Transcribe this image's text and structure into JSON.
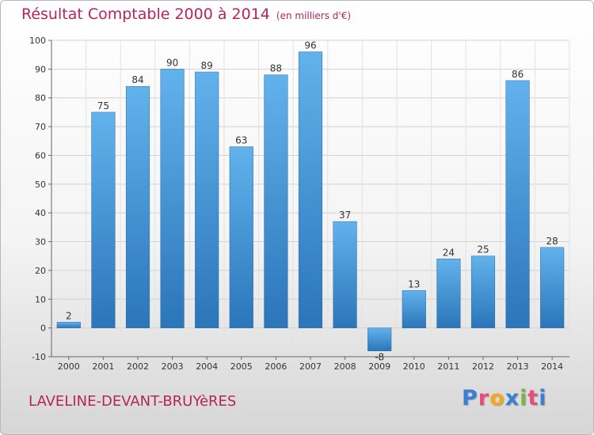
{
  "header": {
    "title": "Résultat Comptable 2000 à 2014",
    "unit": "(en milliers d'€)"
  },
  "commune": "LAVELINE-DEVANT-BRUYèRES",
  "logo": {
    "letters": [
      "P",
      "r",
      "o",
      "x",
      "i",
      "t",
      "i"
    ],
    "colors": [
      "#3a7fd5",
      "#e84c7e",
      "#f3a81c",
      "#3a7fd5",
      "#7cb342",
      "#e84c7e",
      "#3a7fd5"
    ]
  },
  "colors": {
    "bar_top": "#62b2ec",
    "bar_bottom": "#2b75b9",
    "title": "#b5245c"
  },
  "chart_data": {
    "type": "bar",
    "categories": [
      "2000",
      "2001",
      "2002",
      "2003",
      "2004",
      "2005",
      "2006",
      "2007",
      "2008",
      "2009",
      "2010",
      "2011",
      "2012",
      "2013",
      "2014"
    ],
    "values": [
      2,
      75,
      84,
      90,
      89,
      63,
      88,
      96,
      37,
      -8,
      13,
      24,
      25,
      86,
      28
    ],
    "data_labels": [
      "2",
      "75",
      "84",
      "90",
      "89",
      "63",
      "88",
      "96",
      "37",
      "-8",
      "13",
      "24",
      "25",
      "86",
      "28"
    ],
    "yticks": [
      -10,
      0,
      10,
      20,
      30,
      40,
      50,
      60,
      70,
      80,
      90,
      100
    ],
    "ylim": [
      -10,
      100
    ],
    "grid": true,
    "legend": "none"
  }
}
